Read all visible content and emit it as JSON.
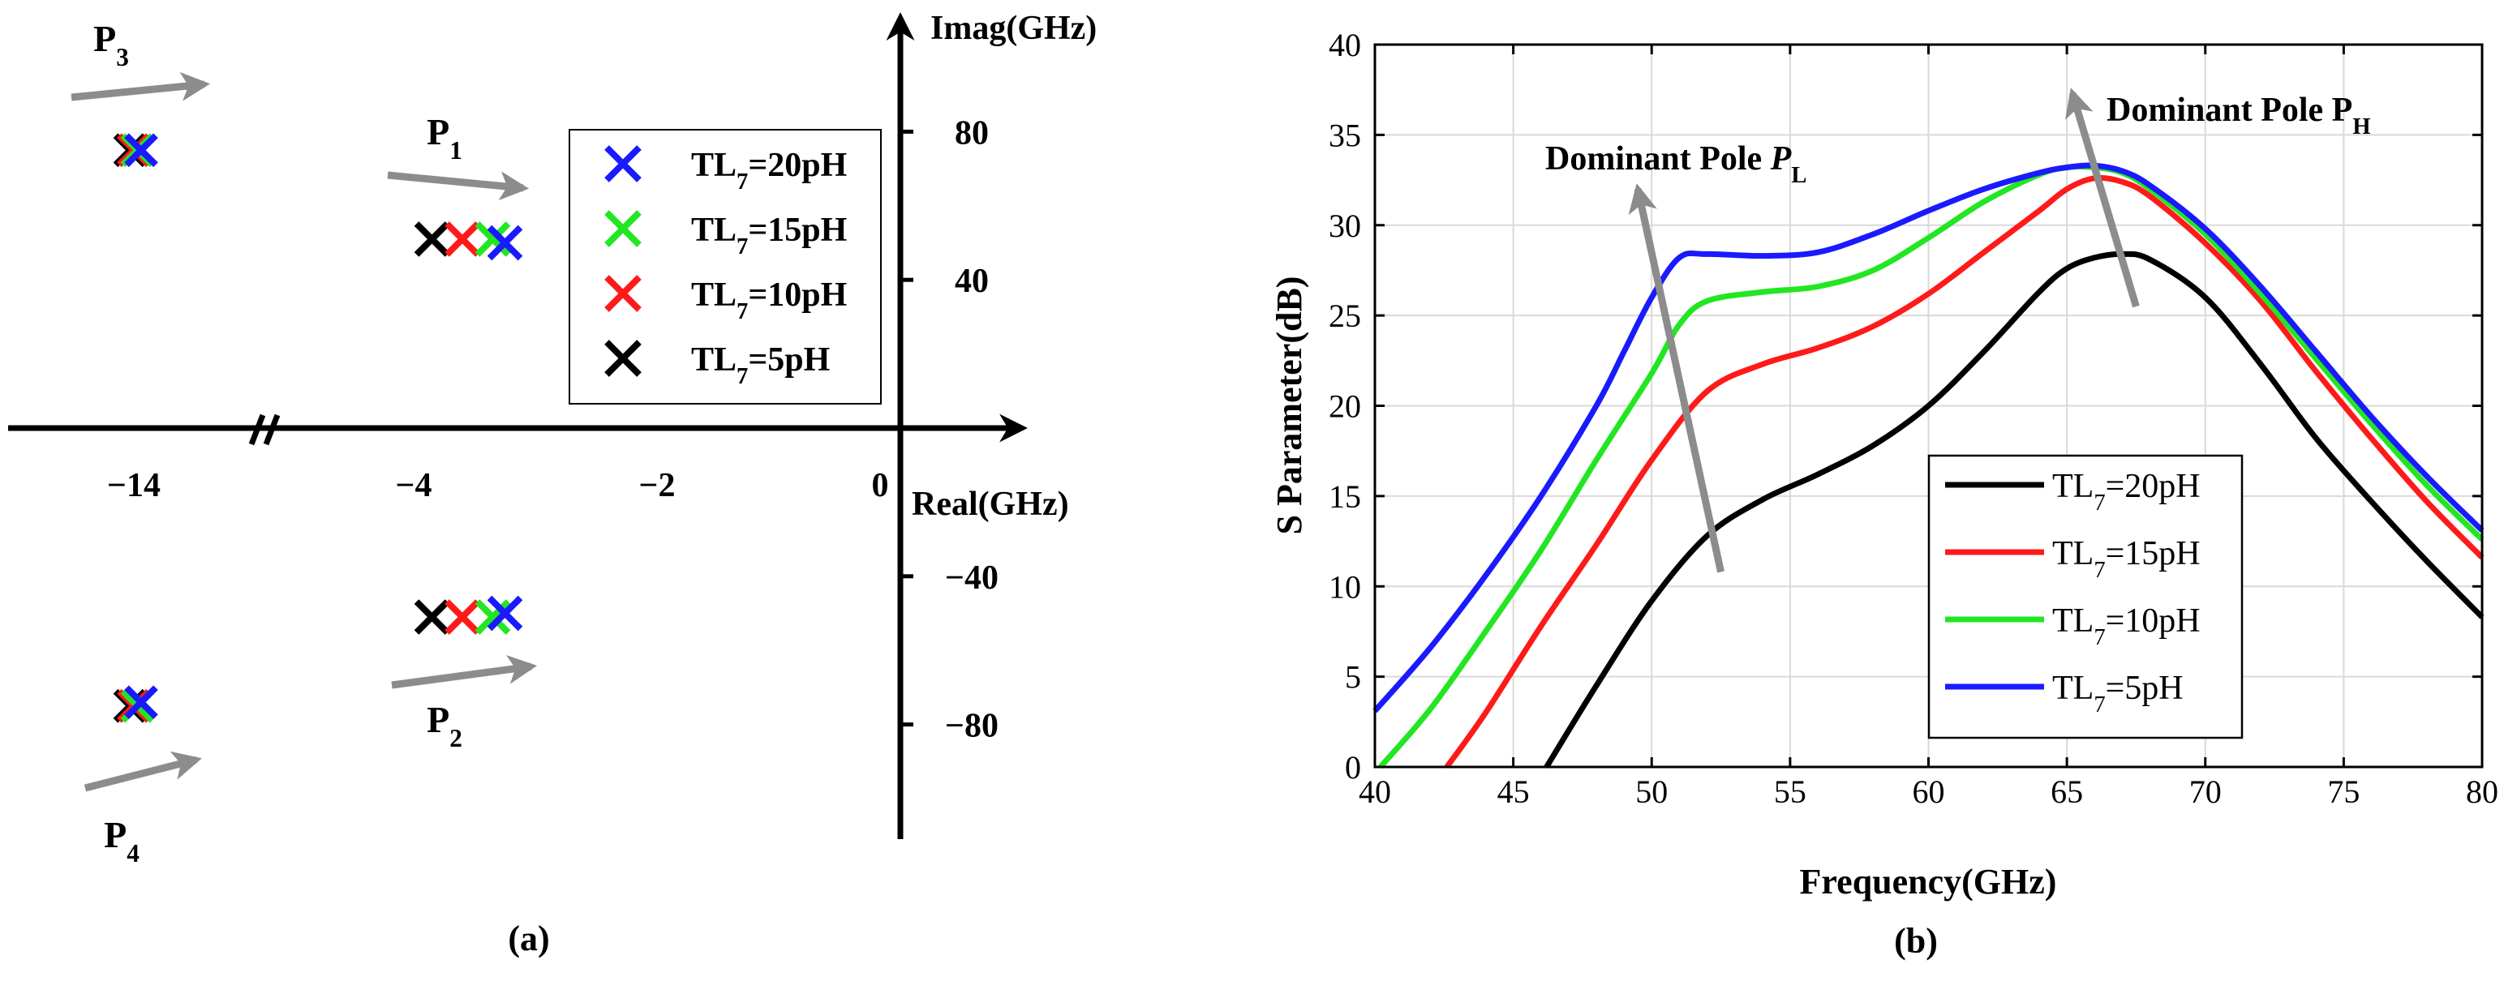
{
  "colors": {
    "blue": "#1a1aff",
    "green": "#22e622",
    "red": "#ff1a1a",
    "black": "#000000",
    "arrow": "#8c8c8c",
    "grid": "#d9d9d9"
  },
  "chart_data": [
    {
      "type": "scatter",
      "panel_label": "(a)",
      "xlabel": "Real(GHz)",
      "ylabel": "Imag(GHz)",
      "x_ticks": [
        "−14",
        "−4",
        "−2",
        "0"
      ],
      "y_ticks": [
        "80",
        "40",
        "−40",
        "−80"
      ],
      "legend": [
        {
          "base": "TL",
          "sub": "7",
          "rest": "=20pH",
          "color": "#1a1aff"
        },
        {
          "base": "TL",
          "sub": "7",
          "rest": "=15pH",
          "color": "#22e622"
        },
        {
          "base": "TL",
          "sub": "7",
          "rest": "=10pH",
          "color": "#ff1a1a"
        },
        {
          "base": "TL",
          "sub": "7",
          "rest": "=5pH",
          "color": "#000000"
        }
      ],
      "poles": [
        {
          "label": "P",
          "sub": "3",
          "color": "#000000",
          "real": -14.1,
          "imag": 75
        },
        {
          "label": "P",
          "sub": "3",
          "color": "#ff1a1a",
          "real": -14.0,
          "imag": 75
        },
        {
          "label": "P",
          "sub": "3",
          "color": "#22e622",
          "real": -13.9,
          "imag": 75
        },
        {
          "label": "P",
          "sub": "3",
          "color": "#1a1aff",
          "real": -13.8,
          "imag": 75
        },
        {
          "label": "P",
          "sub": "1",
          "color": "#000000",
          "real": -3.85,
          "imag": 51
        },
        {
          "label": "P",
          "sub": "1",
          "color": "#ff1a1a",
          "real": -3.6,
          "imag": 51
        },
        {
          "label": "P",
          "sub": "1",
          "color": "#22e622",
          "real": -3.35,
          "imag": 51
        },
        {
          "label": "P",
          "sub": "1",
          "color": "#1a1aff",
          "real": -3.25,
          "imag": 50
        },
        {
          "label": "P",
          "sub": "2",
          "color": "#000000",
          "real": -3.85,
          "imag": -51
        },
        {
          "label": "P",
          "sub": "2",
          "color": "#ff1a1a",
          "real": -3.6,
          "imag": -51
        },
        {
          "label": "P",
          "sub": "2",
          "color": "#22e622",
          "real": -3.35,
          "imag": -51
        },
        {
          "label": "P",
          "sub": "2",
          "color": "#1a1aff",
          "real": -3.25,
          "imag": -50
        },
        {
          "label": "P",
          "sub": "4",
          "color": "#000000",
          "real": -14.1,
          "imag": -75
        },
        {
          "label": "P",
          "sub": "4",
          "color": "#ff1a1a",
          "real": -14.0,
          "imag": -75
        },
        {
          "label": "P",
          "sub": "4",
          "color": "#22e622",
          "real": -13.9,
          "imag": -75
        },
        {
          "label": "P",
          "sub": "4",
          "color": "#1a1aff",
          "real": -13.8,
          "imag": -74
        }
      ],
      "pole_labels": [
        {
          "label": "P",
          "sub": "3"
        },
        {
          "label": "P",
          "sub": "1"
        },
        {
          "label": "P",
          "sub": "2"
        },
        {
          "label": "P",
          "sub": "4"
        }
      ]
    },
    {
      "type": "line",
      "panel_label": "(b)",
      "xlabel": "Frequency(GHz)",
      "ylabel": "S Parameter(dB)",
      "xlim": [
        40,
        80
      ],
      "ylim": [
        0,
        40
      ],
      "grid": true,
      "x_ticks": [
        40,
        45,
        50,
        55,
        60,
        65,
        70,
        75,
        80
      ],
      "y_ticks": [
        0,
        5,
        10,
        15,
        20,
        25,
        30,
        35,
        40
      ],
      "legend_position": "bottom-right",
      "annotations": [
        {
          "text": "Dominant  Pole ",
          "italic": "P",
          "sub": "L"
        },
        {
          "text": "Dominant Pole P",
          "sub": "H"
        }
      ],
      "arrows": [
        {
          "from": [
            52.5,
            10.8
          ],
          "to": [
            49.5,
            32
          ]
        },
        {
          "from": [
            67.5,
            25.5
          ],
          "to": [
            65.2,
            37.3
          ]
        }
      ],
      "series": [
        {
          "name": "TL7=20pH",
          "legend": {
            "base": "TL",
            "sub": "7",
            "rest": "=20pH"
          },
          "color": "#000000",
          "x": [
            46.2,
            48,
            50,
            52,
            54,
            56,
            58,
            60,
            62,
            64,
            65,
            66,
            67,
            68,
            70,
            72,
            74,
            76,
            78,
            80
          ],
          "y": [
            0,
            4.5,
            9.2,
            12.8,
            14.8,
            16.2,
            17.8,
            20.0,
            23.0,
            26.3,
            27.6,
            28.2,
            28.4,
            28.1,
            26.0,
            22.3,
            18.2,
            14.7,
            11.4,
            8.3
          ]
        },
        {
          "name": "TL7=15pH",
          "legend": {
            "base": "TL",
            "sub": "7",
            "rest": "=15pH"
          },
          "color": "#ff1a1a",
          "x": [
            42.6,
            44,
            46,
            48,
            50,
            52,
            54,
            56,
            58,
            60,
            62,
            64,
            65,
            66,
            67,
            68,
            70,
            72,
            74,
            76,
            78,
            80
          ],
          "y": [
            0,
            3.0,
            7.8,
            12.3,
            17.0,
            20.8,
            22.3,
            23.2,
            24.4,
            26.2,
            28.5,
            30.8,
            32.0,
            32.6,
            32.4,
            31.6,
            29.0,
            25.8,
            21.9,
            18.2,
            14.7,
            11.6
          ]
        },
        {
          "name": "TL7=10pH",
          "legend": {
            "base": "TL",
            "sub": "7",
            "rest": "=10pH"
          },
          "color": "#22e622",
          "x": [
            40.2,
            42,
            44,
            46,
            48,
            50,
            51,
            52,
            54,
            56,
            58,
            60,
            62,
            64,
            65,
            66,
            67,
            68,
            70,
            72,
            74,
            76,
            78,
            80
          ],
          "y": [
            0,
            3.2,
            7.5,
            12.0,
            17.0,
            21.8,
            24.5,
            25.8,
            26.3,
            26.6,
            27.5,
            29.3,
            31.3,
            32.8,
            33.2,
            33.2,
            32.9,
            32.0,
            29.5,
            26.2,
            22.6,
            19.0,
            15.6,
            12.6
          ]
        },
        {
          "name": "TL7=5pH",
          "legend": {
            "base": "TL",
            "sub": "7",
            "rest": "=5pH"
          },
          "color": "#1a1aff",
          "x": [
            40,
            42,
            44,
            46,
            48,
            49,
            50,
            51,
            52,
            54,
            56,
            58,
            60,
            62,
            64,
            65,
            66,
            67,
            68,
            70,
            72,
            74,
            76,
            78,
            80
          ],
          "y": [
            3.1,
            6.6,
            10.6,
            15.0,
            20.0,
            23.0,
            26.0,
            28.2,
            28.4,
            28.3,
            28.5,
            29.5,
            30.8,
            32.0,
            32.9,
            33.2,
            33.3,
            33.0,
            32.2,
            29.8,
            26.6,
            23.0,
            19.4,
            16.1,
            13.1
          ]
        }
      ]
    }
  ]
}
